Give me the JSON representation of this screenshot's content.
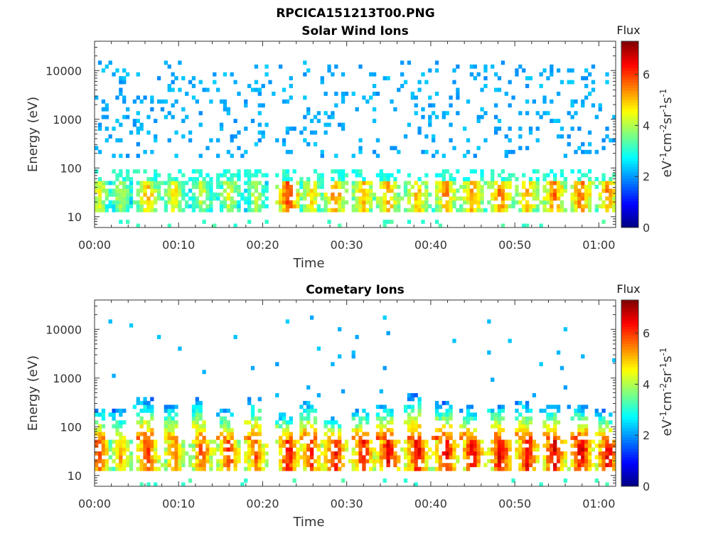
{
  "figure": {
    "title": "RPCICA151213T00.PNG"
  },
  "chart_data": [
    {
      "type": "heatmap",
      "title": "Solar Wind Ions",
      "xlabel": "Time",
      "ylabel": "Energy (eV)",
      "xticks": [
        "00:00",
        "00:10",
        "00:20",
        "00:30",
        "00:40",
        "00:50",
        "01:00"
      ],
      "xlim_minutes": [
        0,
        62
      ],
      "yscale": "log",
      "ylim": [
        6,
        40000
      ],
      "yticks": [
        "10",
        "100",
        "1000",
        "10000"
      ],
      "colorbar": {
        "label": "Flux",
        "unit": "eV-1cm-2sr-1s-1",
        "range": [
          0,
          7.3
        ],
        "ticks": [
          "0",
          "2",
          "4",
          "6"
        ],
        "colormap": "jet"
      },
      "pulse_minutes": [
        0.5,
        3.2,
        6.3,
        9.5,
        12.8,
        16.0,
        19.2,
        23.1,
        25.8,
        28.6,
        32.0,
        35.0,
        38.4,
        41.8,
        45.0,
        48.3,
        51.5,
        54.7,
        57.9,
        61.1
      ],
      "pulse_peak_flux": [
        4.6,
        4.3,
        5.2,
        4.8,
        4.4,
        4.5,
        4.2,
        6.2,
        5.0,
        5.6,
        5.3,
        5.5,
        5.4,
        5.6,
        5.6,
        5.8,
        5.4,
        5.8,
        5.9,
        5.6
      ],
      "core_energy_eV": 30,
      "background_energy_range_eV": [
        150,
        15000
      ],
      "background_flux": 2.1
    },
    {
      "type": "heatmap",
      "title": "Cometary Ions",
      "xlabel": "Time",
      "ylabel": "Energy (eV)",
      "xticks": [
        "00:00",
        "00:10",
        "00:20",
        "00:30",
        "00:40",
        "00:50",
        "01:00"
      ],
      "xlim_minutes": [
        0,
        62
      ],
      "yscale": "log",
      "ylim": [
        6,
        40000
      ],
      "yticks": [
        "10",
        "100",
        "1000",
        "10000"
      ],
      "colorbar": {
        "label": "Flux",
        "unit": "eV-1cm-2sr-1s-1",
        "range": [
          0,
          7.3
        ],
        "ticks": [
          "0",
          "2",
          "4",
          "6"
        ],
        "colormap": "jet"
      },
      "pulse_minutes": [
        0.5,
        3.2,
        6.3,
        9.5,
        12.8,
        16.0,
        19.2,
        23.1,
        25.8,
        28.6,
        32.0,
        35.0,
        38.4,
        41.8,
        45.0,
        48.3,
        51.5,
        54.7,
        57.9,
        61.1
      ],
      "pulse_peak_flux": [
        6.2,
        5.4,
        6.4,
        5.8,
        6.0,
        6.1,
        6.0,
        6.6,
        6.3,
        6.6,
        6.5,
        6.7,
        6.7,
        6.7,
        6.7,
        6.8,
        6.7,
        6.8,
        6.8,
        6.7
      ],
      "pulse_top_energy_eV": [
        250,
        220,
        380,
        300,
        380,
        250,
        420,
        200,
        350,
        160,
        250,
        300,
        450,
        320,
        260,
        300,
        320,
        300,
        280,
        220
      ],
      "core_energy_eV": 30,
      "background_flux": 2.0
    }
  ]
}
